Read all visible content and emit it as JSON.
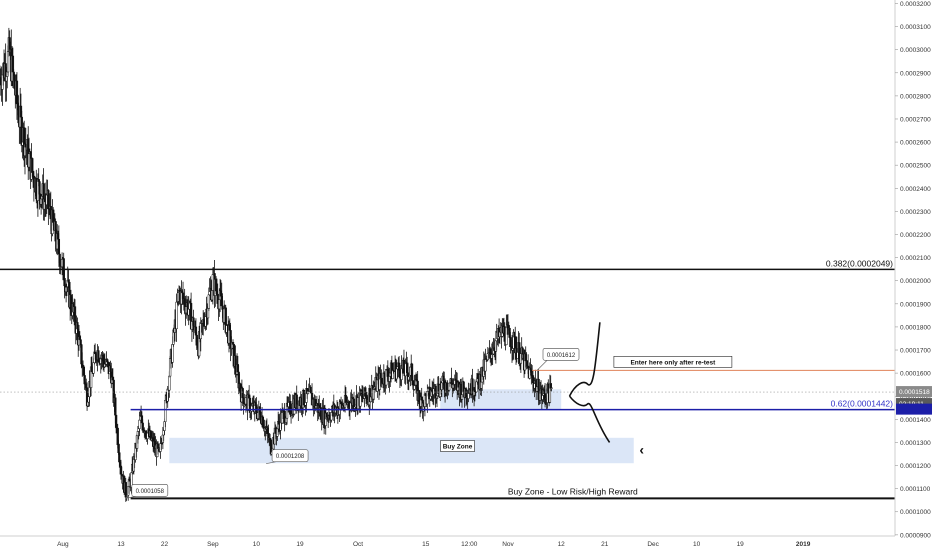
{
  "colors": {
    "background": "#ffffff",
    "candle": "#111111",
    "fib_line": "#111111",
    "fib_062_line": "#1c1ea8",
    "fib_062_label": "#3434c8",
    "resistance_line": "#e0825a",
    "zone_fill": "#dbe6f7",
    "last_price_tag": "#8a8a8a",
    "countdown_tag": "#5a5a5a",
    "axis_text": "#333333"
  },
  "chart_data": {
    "type": "candlestick",
    "y_axis": {
      "min": 8.95e-05,
      "max": 0.0003215,
      "ticks": [
        "0.0003200",
        "0.0003100",
        "0.0003000",
        "0.0002900",
        "0.0002800",
        "0.0002700",
        "0.0002600",
        "0.0002500",
        "0.0002400",
        "0.0002300",
        "0.0002200",
        "0.0002100",
        "0.0002000",
        "0.0001900",
        "0.0001800",
        "0.0001700",
        "0.0001600",
        "0.0001500",
        "0.0001400",
        "0.0001300",
        "0.0001200",
        "0.0001100",
        "0.0001000",
        "0.0000900"
      ],
      "position": "right"
    },
    "x_axis": {
      "start_date": "2018-07-19",
      "end_date": "2019-01-20",
      "tick_labels": [
        {
          "date": "2018-08-01",
          "label": "Aug"
        },
        {
          "date": "2018-08-13",
          "label": "13"
        },
        {
          "date": "2018-08-22",
          "label": "22"
        },
        {
          "date": "2018-09-01",
          "label": "Sep"
        },
        {
          "date": "2018-09-10",
          "label": "10"
        },
        {
          "date": "2018-09-19",
          "label": "19"
        },
        {
          "date": "2018-10-01",
          "label": "Oct"
        },
        {
          "date": "2018-10-15",
          "label": "15"
        },
        {
          "date": "2018-10-24",
          "label": "12:00"
        },
        {
          "date": "2018-11-01",
          "label": "Nov"
        },
        {
          "date": "2018-11-12",
          "label": "12"
        },
        {
          "date": "2018-11-21",
          "label": "21"
        },
        {
          "date": "2018-12-01",
          "label": "Dec"
        },
        {
          "date": "2018-12-10",
          "label": "10"
        },
        {
          "date": "2018-12-19",
          "label": "19"
        },
        {
          "date": "2019-01-01",
          "label": "2019",
          "bold": true
        }
      ]
    },
    "series": [
      {
        "name": "",
        "kind": "close_path_approx",
        "points": [
          {
            "date": "2018-07-19",
            "close": 0.000288
          },
          {
            "date": "2018-07-21",
            "close": 0.000298
          },
          {
            "date": "2018-07-23",
            "close": 0.00027
          },
          {
            "date": "2018-07-26",
            "close": 0.000244
          },
          {
            "date": "2018-07-29",
            "close": 0.000232
          },
          {
            "date": "2018-08-01",
            "close": 0.000205
          },
          {
            "date": "2018-08-04",
            "close": 0.000178
          },
          {
            "date": "2018-08-06",
            "close": 0.00015
          },
          {
            "date": "2018-08-08",
            "close": 0.00017
          },
          {
            "date": "2018-08-11",
            "close": 0.00016
          },
          {
            "date": "2018-08-13",
            "close": 0.000118
          },
          {
            "date": "2018-08-14",
            "close": 0.000108
          },
          {
            "date": "2018-08-15",
            "close": 0.000113
          },
          {
            "date": "2018-08-17",
            "close": 0.00014
          },
          {
            "date": "2018-08-19",
            "close": 0.000132
          },
          {
            "date": "2018-08-21",
            "close": 0.000124
          },
          {
            "date": "2018-08-23",
            "close": 0.00016
          },
          {
            "date": "2018-08-25",
            "close": 0.000195
          },
          {
            "date": "2018-08-27",
            "close": 0.000188
          },
          {
            "date": "2018-08-29",
            "close": 0.000172
          },
          {
            "date": "2018-09-01",
            "close": 0.0002
          },
          {
            "date": "2018-09-03",
            "close": 0.000188
          },
          {
            "date": "2018-09-05",
            "close": 0.00017
          },
          {
            "date": "2018-09-07",
            "close": 0.00015
          },
          {
            "date": "2018-09-09",
            "close": 0.000145
          },
          {
            "date": "2018-09-11",
            "close": 0.000142
          },
          {
            "date": "2018-09-13",
            "close": 0.000128
          },
          {
            "date": "2018-09-15",
            "close": 0.00014
          },
          {
            "date": "2018-09-18",
            "close": 0.000147
          },
          {
            "date": "2018-09-21",
            "close": 0.00015
          },
          {
            "date": "2018-09-24",
            "close": 0.000141
          },
          {
            "date": "2018-09-27",
            "close": 0.000145
          },
          {
            "date": "2018-09-30",
            "close": 0.000148
          },
          {
            "date": "2018-10-03",
            "close": 0.00015
          },
          {
            "date": "2018-10-06",
            "close": 0.000158
          },
          {
            "date": "2018-10-09",
            "close": 0.000162
          },
          {
            "date": "2018-10-12",
            "close": 0.00016
          },
          {
            "date": "2018-10-14",
            "close": 0.000147
          },
          {
            "date": "2018-10-17",
            "close": 0.000153
          },
          {
            "date": "2018-10-20",
            "close": 0.000156
          },
          {
            "date": "2018-10-23",
            "close": 0.000152
          },
          {
            "date": "2018-10-26",
            "close": 0.000156
          },
          {
            "date": "2018-10-29",
            "close": 0.000172
          },
          {
            "date": "2018-10-31",
            "close": 0.000178
          },
          {
            "date": "2018-11-02",
            "close": 0.000174
          },
          {
            "date": "2018-11-04",
            "close": 0.000166
          },
          {
            "date": "2018-11-06",
            "close": 0.000158
          },
          {
            "date": "2018-11-08",
            "close": 0.00015
          },
          {
            "date": "2018-11-10",
            "close": 0.0001518
          }
        ]
      }
    ],
    "drawings": {
      "fib_0382": {
        "value": 0.0002049,
        "label": "0.382(0.0002049)"
      },
      "fib_062": {
        "value": 0.0001442,
        "label": "0.62(0.0001442)",
        "from_date": "2018-08-15"
      },
      "resistance": {
        "value": 0.0001612,
        "from_date": "2018-11-06"
      },
      "support": {
        "value": 0.0001058,
        "label": "Buy Zone - Low Risk/High Reward",
        "from_date": "2018-08-15"
      },
      "upper_zone": {
        "y_top": 0.000153,
        "y_bottom": 0.000144,
        "from_date": "2018-10-18",
        "to_date": "2018-11-12"
      },
      "buy_zone": {
        "y_top": 0.000132,
        "y_bottom": 0.000121,
        "from_date": "2018-08-23",
        "to_date": "2018-11-27",
        "label": "Buy Zone"
      },
      "callouts": [
        {
          "label": "0.0001058",
          "date": "2018-08-14",
          "value": 0.0001058
        },
        {
          "label": "0.0001208",
          "date": "2018-09-12",
          "value": 0.0001208
        },
        {
          "label": "0.0001612",
          "date": "2018-11-07",
          "value": 0.0001612
        }
      ],
      "note": "Enter here only after re-test",
      "scenario_up_end": {
        "date": "2018-11-20",
        "value": 0.000182
      },
      "scenario_down_end": {
        "date": "2018-11-22",
        "value": 0.00013
      },
      "arrow_glyph": "‹"
    },
    "last_price": {
      "label": "0.0001518",
      "value": 0.0001518
    },
    "countdown": {
      "label": "02:19:11"
    },
    "grid": false,
    "legend": "none"
  }
}
